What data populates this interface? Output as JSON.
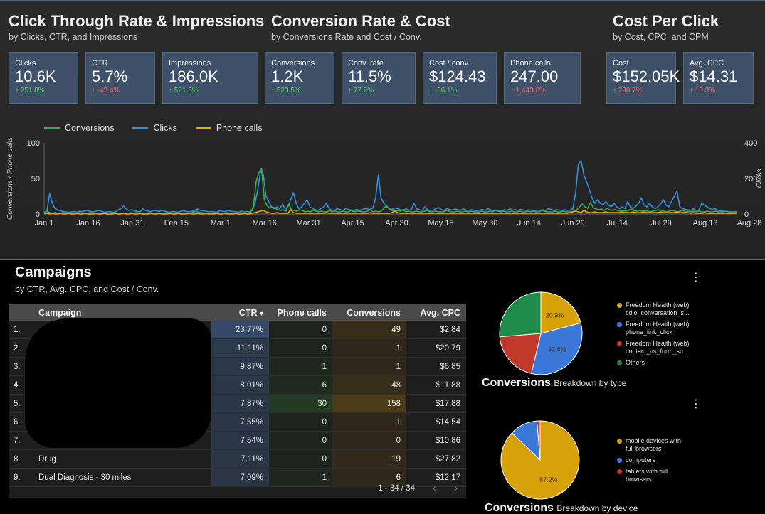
{
  "sections": [
    {
      "title": "Click Through Rate & Impressions",
      "subtitle": "by Clicks, CTR, and Impressions"
    },
    {
      "title": "Conversion Rate & Cost",
      "subtitle": "by Conversions Rate and Cost / Conv."
    },
    {
      "title": "Cost Per Click",
      "subtitle": "by Cost, CPC, and CPM"
    }
  ],
  "kpis": [
    {
      "label": "Clicks",
      "value": "10.6K",
      "change": "251.8%",
      "dir": "up",
      "color": "up"
    },
    {
      "label": "CTR",
      "value": "5.7%",
      "change": "-43.4%",
      "dir": "down",
      "color": "down"
    },
    {
      "label": "Impressions",
      "value": "186.0K",
      "change": "521.5%",
      "dir": "up",
      "color": "up"
    },
    {
      "label": "Conversions",
      "value": "1.2K",
      "change": "523.5%",
      "dir": "up",
      "color": "up"
    },
    {
      "label": "Conv. rate",
      "value": "11.5%",
      "change": "77.2%",
      "dir": "up",
      "color": "up"
    },
    {
      "label": "Cost / conv.",
      "value": "$124.43",
      "change": "-36.1%",
      "dir": "down",
      "color": "up"
    },
    {
      "label": "Phone calls",
      "value": "247.00",
      "change": "1,443.8%",
      "dir": "up",
      "color": "down"
    },
    {
      "label": "Cost",
      "value": "$152.05K",
      "change": "298.7%",
      "dir": "up",
      "color": "down"
    },
    {
      "label": "Avg. CPC",
      "value": "$14.31",
      "change": "13.3%",
      "dir": "up",
      "color": "down"
    }
  ],
  "colors": {
    "conversions": "#3fae49",
    "clicks": "#2f8fe0",
    "phone_calls": "#f0a30a",
    "accent": "#4a6a8a"
  },
  "chart_data": {
    "type": "line",
    "title": "",
    "xlabel": "",
    "ylabel": "Conversions / Phone calls",
    "y2label": "Clicks",
    "ylim": [
      0,
      100
    ],
    "y2lim": [
      0,
      400
    ],
    "yticks": [
      "100",
      "50",
      "0"
    ],
    "y2ticks": [
      "400",
      "200",
      "0"
    ],
    "legend": "top-left",
    "x_ticks": [
      "Jan 1",
      "Jan 16",
      "Jan 31",
      "Feb 15",
      "Mar 1",
      "Mar 16",
      "Mar 31",
      "Apr 15",
      "Apr 30",
      "May 15",
      "May 30",
      "Jun 14",
      "Jun 29",
      "Jul 14",
      "Jul 29",
      "Aug 13",
      "Aug 28"
    ],
    "series": [
      {
        "name": "Conversions",
        "axis": "left",
        "color": "#3fae49",
        "values": [
          2,
          4,
          2,
          1,
          2,
          1,
          1,
          2,
          1,
          1,
          1,
          1,
          1,
          2,
          1,
          1,
          1,
          2,
          1,
          1,
          1,
          1,
          1,
          1,
          1,
          1,
          2,
          1,
          1,
          1,
          1,
          1,
          2,
          1,
          2,
          1,
          1,
          1,
          1,
          2,
          1,
          1,
          1,
          1,
          1,
          2,
          1,
          1,
          1,
          1,
          1,
          1,
          1,
          1,
          1,
          3,
          4,
          2,
          2,
          1,
          1,
          1,
          1,
          1,
          2,
          1,
          1,
          2,
          1,
          1,
          1,
          1,
          2,
          1,
          1,
          1,
          3,
          10,
          45,
          58,
          64,
          20,
          12,
          8,
          10,
          8,
          6,
          5,
          6,
          4,
          14,
          6,
          5,
          4,
          6,
          5,
          3,
          4,
          3,
          5,
          4,
          3,
          4,
          3,
          3,
          5,
          3,
          4,
          3,
          3,
          4,
          3,
          3,
          5,
          3,
          4,
          4,
          3,
          3,
          4,
          6,
          3,
          4,
          3,
          4,
          8,
          12,
          6,
          5,
          4,
          5,
          4,
          6,
          3,
          4,
          3,
          3,
          4,
          3,
          3,
          4,
          5,
          3,
          3,
          4,
          3,
          3,
          3,
          5,
          4,
          3,
          3,
          4,
          3,
          3,
          4,
          3,
          4,
          3,
          3,
          3,
          4,
          3,
          3,
          4,
          3,
          5,
          4,
          3,
          4,
          3,
          3,
          4,
          3,
          3,
          4,
          3,
          3,
          4,
          3,
          4,
          3,
          3,
          5,
          4,
          3,
          3,
          3,
          4,
          3,
          3,
          4,
          3,
          3,
          3,
          4,
          6,
          10,
          14,
          10,
          8,
          16,
          9,
          7,
          6,
          7,
          5,
          8,
          6,
          5,
          6,
          5,
          4,
          5,
          4,
          5,
          7,
          5,
          4,
          5,
          4,
          5,
          4,
          3,
          4,
          5,
          6,
          5,
          4,
          3,
          4,
          5,
          4,
          3,
          4,
          5,
          3,
          4,
          3,
          4,
          3,
          4,
          3,
          3,
          4,
          3,
          3,
          4,
          3,
          3,
          3,
          4,
          3,
          3,
          3,
          3
        ]
      },
      {
        "name": "Clicks",
        "axis": "right",
        "color": "#2f8fe0",
        "values": [
          8,
          12,
          115,
          60,
          30,
          22,
          18,
          14,
          12,
          10,
          12,
          14,
          10,
          16,
          12,
          20,
          18,
          14,
          12,
          16,
          20,
          14,
          10,
          12,
          14,
          10,
          12,
          22,
          30,
          45,
          28,
          20,
          24,
          18,
          14,
          12,
          30,
          20,
          16,
          14,
          20,
          18,
          14,
          22,
          16,
          12,
          10,
          14,
          12,
          10,
          16,
          18,
          14,
          12,
          16,
          22,
          28,
          20,
          18,
          16,
          12,
          14,
          12,
          10,
          18,
          16,
          14,
          20,
          16,
          14,
          12,
          10,
          16,
          12,
          14,
          12,
          20,
          60,
          140,
          240,
          220,
          100,
          70,
          40,
          30,
          40,
          30,
          55,
          28,
          40,
          80,
          120,
          60,
          30,
          40,
          60,
          80,
          40,
          30,
          24,
          20,
          30,
          40,
          60,
          30,
          22,
          20,
          30,
          26,
          20,
          30,
          26,
          22,
          18,
          26,
          20,
          24,
          30,
          28,
          26,
          34,
          90,
          220,
          90,
          60,
          40,
          30,
          26,
          34,
          30,
          24,
          20,
          30,
          22,
          24,
          60,
          30,
          24,
          20,
          40,
          24,
          20,
          22,
          30,
          36,
          24,
          20,
          30,
          26,
          22,
          28,
          24,
          20,
          30,
          22,
          20,
          24,
          20,
          18,
          22,
          26,
          20,
          30,
          24,
          18,
          22,
          20,
          18,
          24,
          20,
          30,
          22,
          24,
          20,
          26,
          22,
          20,
          24,
          20,
          18,
          22,
          20,
          24,
          18,
          30,
          26,
          20,
          24,
          22,
          20,
          24,
          20,
          22,
          30,
          120,
          280,
          300,
          220,
          180,
          140,
          90,
          60,
          80,
          60,
          50,
          70,
          50,
          40,
          60,
          40,
          30,
          40,
          30,
          70,
          40,
          30,
          44,
          60,
          90,
          50,
          40,
          60,
          40,
          30,
          40,
          56,
          80,
          50,
          40,
          70,
          100,
          130,
          40,
          30,
          26,
          24,
          20,
          30,
          20,
          22,
          60,
          50,
          40,
          30,
          26,
          30,
          20,
          18,
          16,
          14,
          12,
          12,
          10,
          8
        ]
      },
      {
        "name": "Phone calls",
        "axis": "left",
        "color": "#f0a30a",
        "values": [
          1,
          1,
          0,
          1,
          0,
          0,
          1,
          0,
          0,
          1,
          0,
          0,
          1,
          0,
          0,
          1,
          0,
          0,
          0,
          1,
          0,
          0,
          1,
          0,
          0,
          0,
          1,
          0,
          0,
          1,
          0,
          0,
          1,
          0,
          0,
          1,
          0,
          0,
          0,
          1,
          0,
          0,
          1,
          0,
          0,
          0,
          1,
          0,
          0,
          1,
          0,
          0,
          0,
          1,
          0,
          0,
          1,
          0,
          0,
          1,
          0,
          0,
          0,
          1,
          0,
          0,
          1,
          0,
          0,
          0,
          1,
          0,
          0,
          1,
          0,
          0,
          1,
          2,
          3,
          4,
          5,
          3,
          2,
          1,
          1,
          2,
          1,
          1,
          1,
          1,
          6,
          2,
          1,
          1,
          1,
          1,
          1,
          1,
          1,
          1,
          1,
          1,
          1,
          2,
          1,
          1,
          1,
          1,
          1,
          1,
          1,
          1,
          1,
          1,
          1,
          1,
          1,
          1,
          1,
          2,
          1,
          1,
          1,
          1,
          1,
          1,
          1,
          2,
          4,
          2,
          1,
          1,
          1,
          1,
          1,
          1,
          1,
          1,
          1,
          1,
          1,
          1,
          1,
          1,
          1,
          1,
          1,
          1,
          1,
          1,
          1,
          1,
          1,
          1,
          1,
          1,
          1,
          1,
          1,
          1,
          1,
          1,
          1,
          1,
          1,
          1,
          1,
          1,
          1,
          1,
          1,
          1,
          1,
          1,
          1,
          1,
          1,
          1,
          1,
          1,
          1,
          1,
          1,
          1,
          1,
          1,
          1,
          1,
          1,
          1,
          1,
          1,
          2,
          3,
          4,
          3,
          2,
          5,
          3,
          2,
          2,
          3,
          2,
          2,
          2,
          3,
          2,
          2,
          2,
          2,
          2,
          3,
          2,
          2,
          2,
          3,
          2,
          2,
          2,
          3,
          2,
          2,
          2,
          2,
          2,
          3,
          2,
          2,
          2,
          2,
          2,
          3,
          2,
          2,
          2,
          2,
          1,
          2,
          1,
          1,
          1,
          2,
          1,
          1,
          1,
          1,
          1,
          1,
          1,
          1,
          1,
          1,
          1,
          1
        ]
      }
    ]
  },
  "campaigns": {
    "title": "Campaigns",
    "subtitle": "by CTR, Avg. CPC, and Cost / Conv.",
    "columns": {
      "campaign": "Campaign",
      "ctr": "CTR",
      "sort_arrow": "▾",
      "phone_calls": "Phone calls",
      "conversions": "Conversions",
      "avg_cpc": "Avg. CPC"
    },
    "rows": [
      {
        "idx": "1.",
        "campaign": "",
        "ctr": "23.77%",
        "phone_calls": "0",
        "conversions": "49",
        "avg_cpc": "$2.84",
        "ctr_frac": 1.0,
        "pc_frac": 0.0,
        "conv_frac": 0.31
      },
      {
        "idx": "2.",
        "campaign": "",
        "ctr": "11.11%",
        "phone_calls": "0",
        "conversions": "1",
        "avg_cpc": "$20.79",
        "ctr_frac": 0.47,
        "pc_frac": 0.0,
        "conv_frac": 0.01
      },
      {
        "idx": "3.",
        "campaign": "",
        "ctr": "9.87%",
        "phone_calls": "1",
        "conversions": "1",
        "avg_cpc": "$6.85",
        "ctr_frac": 0.41,
        "pc_frac": 0.03,
        "conv_frac": 0.01
      },
      {
        "idx": "4.",
        "campaign": "",
        "ctr": "8.01%",
        "phone_calls": "6",
        "conversions": "48",
        "avg_cpc": "$11.88",
        "ctr_frac": 0.34,
        "pc_frac": 0.2,
        "conv_frac": 0.3
      },
      {
        "idx": "5.",
        "campaign": "",
        "ctr": "7.87%",
        "phone_calls": "30",
        "conversions": "158",
        "avg_cpc": "$17.88",
        "ctr_frac": 0.33,
        "pc_frac": 1.0,
        "conv_frac": 1.0
      },
      {
        "idx": "6.",
        "campaign": "",
        "ctr": "7.55%",
        "phone_calls": "0",
        "conversions": "1",
        "avg_cpc": "$14.54",
        "ctr_frac": 0.32,
        "pc_frac": 0.0,
        "conv_frac": 0.01
      },
      {
        "idx": "7.",
        "campaign": "",
        "ctr": "7.54%",
        "phone_calls": "0",
        "conversions": "0",
        "avg_cpc": "$10.86",
        "ctr_frac": 0.32,
        "pc_frac": 0.0,
        "conv_frac": 0.0
      },
      {
        "idx": "8.",
        "campaign": "Drug",
        "ctr": "7.11%",
        "phone_calls": "0",
        "conversions": "19",
        "avg_cpc": "$27.82",
        "ctr_frac": 0.3,
        "pc_frac": 0.0,
        "conv_frac": 0.12
      },
      {
        "idx": "9.",
        "campaign": "Dual Diagnosis - 30 miles",
        "ctr": "7.09%",
        "phone_calls": "1",
        "conversions": "6",
        "avg_cpc": "$12.17",
        "ctr_frac": 0.3,
        "pc_frac": 0.03,
        "conv_frac": 0.04
      }
    ],
    "pager": {
      "text": "1 - 34 / 34",
      "prev": "‹",
      "next": "›"
    }
  },
  "pie_type": {
    "title": "Conversions",
    "subtitle": "Breakdown by type",
    "menu": "⋮",
    "slices": [
      {
        "label": "Freedom Health (web) tidio_conversation_s...",
        "line1": "Freedom Health (web)",
        "line2": "tidio_conversation_s...",
        "value": 20.9,
        "text": "20.9%",
        "color": "#d7a10a"
      },
      {
        "label": "Freedom Health (web) phone_link_click",
        "line1": "Freedom Health (web)",
        "line2": "phone_link_click",
        "value": 32.8,
        "text": "32.8%",
        "color": "#3c78d8"
      },
      {
        "label": "Freedom Health (web) contact_us_form_su...",
        "line1": "Freedom Health (web)",
        "line2": "contact_us_form_su...",
        "value": 20.0,
        "text": "",
        "color": "#c0392b"
      },
      {
        "label": "Others",
        "line1": "Others",
        "line2": "",
        "value": 26.3,
        "text": "",
        "color": "#1e8c4a"
      }
    ]
  },
  "pie_device": {
    "title": "Conversions",
    "subtitle": "Breakdown by device",
    "menu": "⋮",
    "slices": [
      {
        "label": "mobile devices with full browsers",
        "line1": "mobile devices with",
        "line2": "full browsers",
        "value": 87.2,
        "text": "87.2%",
        "color": "#d7a10a"
      },
      {
        "label": "computers",
        "line1": "computers",
        "line2": "",
        "value": 11.5,
        "text": "",
        "color": "#3c78d8"
      },
      {
        "label": "tablets with full browsers",
        "line1": "tablets with full",
        "line2": "browsers",
        "value": 1.3,
        "text": "",
        "color": "#c0392b"
      }
    ]
  }
}
